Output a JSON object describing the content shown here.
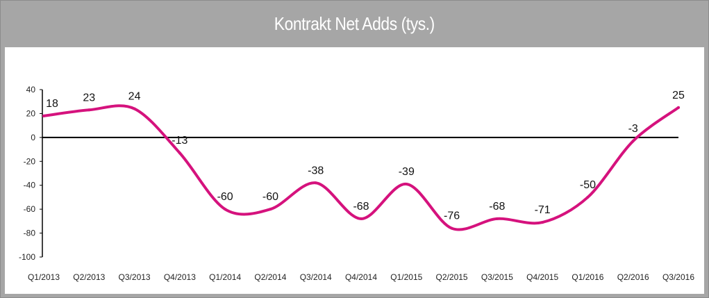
{
  "chart_data": {
    "type": "line",
    "title": "Kontrakt Net Adds (tys.)",
    "xlabel": "",
    "ylabel": "",
    "categories": [
      "Q1/2013",
      "Q2/2013",
      "Q3/2013",
      "Q4/2013",
      "Q1/2014",
      "Q2/2014",
      "Q3/2014",
      "Q4/2014",
      "Q1/2015",
      "Q2/2015",
      "Q3/2015",
      "Q4/2015",
      "Q1/2016",
      "Q2/2016",
      "Q3/2016"
    ],
    "series": [
      {
        "values": [
          18,
          23,
          24,
          -13,
          -60,
          -60,
          -38,
          -68,
          -39,
          -76,
          -68,
          -71,
          -50,
          -3,
          25
        ]
      }
    ],
    "data_labels": [
      "18",
      "23",
      "24",
      "-13",
      "-60",
      "-60",
      "-38",
      "-68",
      "-39",
      "-76",
      "-68",
      "-71",
      "-50",
      "-3",
      "25"
    ],
    "ylim": [
      -100,
      40
    ],
    "yticks": [
      40,
      20,
      0,
      -20,
      -40,
      -60,
      -80,
      -100
    ],
    "ytick_labels": [
      "40",
      "20",
      "0",
      "-20",
      "-40",
      "-60",
      "-80",
      "-100"
    ],
    "grid": false,
    "legend": "none",
    "line_color": "#d5127d",
    "zero_line_color": "#000000",
    "title_bar_color": "#a6a6a6"
  }
}
